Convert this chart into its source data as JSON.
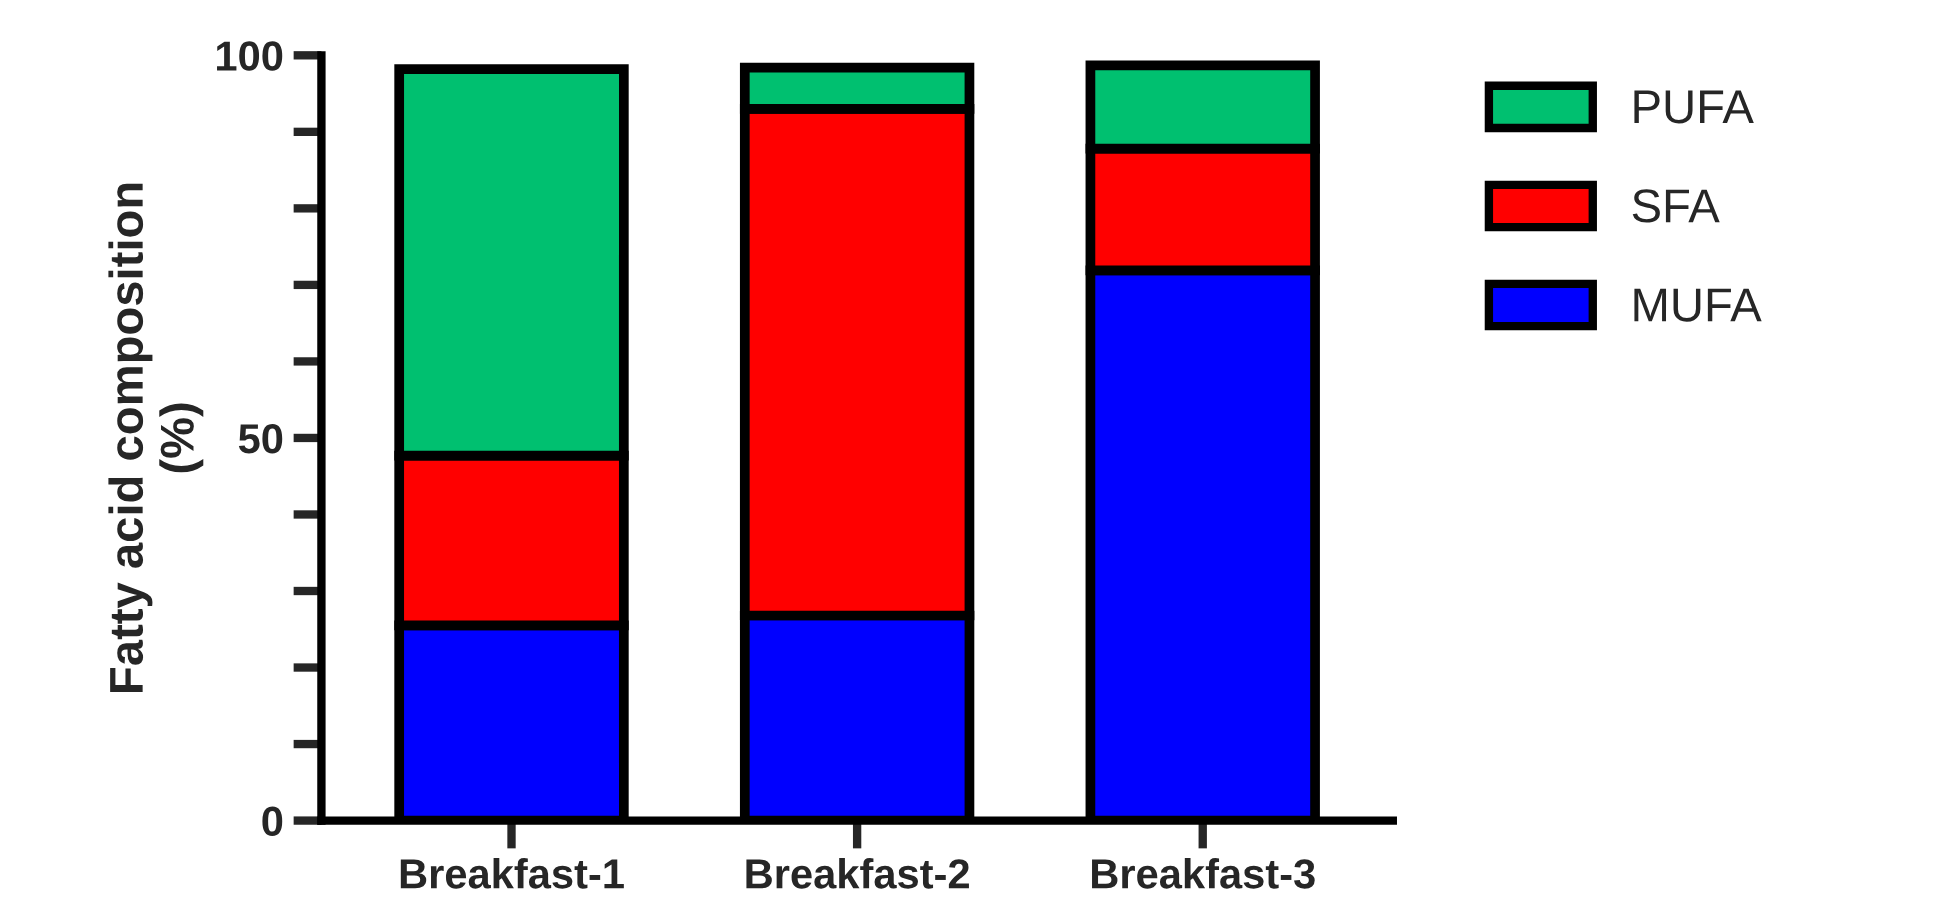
{
  "chart_data": {
    "type": "bar",
    "stacked": true,
    "ylabel": "Fatty acid composition\n(%)",
    "categories": [
      "Breakfast-1",
      "Breakfast-2",
      "Breakfast-3"
    ],
    "series": [
      {
        "name": "MUFA",
        "color": "#0000ff",
        "values": [
          25.5,
          26.8,
          71.9
        ]
      },
      {
        "name": "SFA",
        "color": "#ff0000",
        "values": [
          22.2,
          66.2,
          15.9
        ]
      },
      {
        "name": "PUFA",
        "color": "#00c070",
        "values": [
          50.5,
          5.4,
          10.9
        ]
      }
    ],
    "ylim": [
      0,
      100
    ],
    "yticks": [
      0,
      {
        "value": 10,
        "label": null
      },
      {
        "value": 20,
        "label": null
      },
      {
        "value": 30,
        "label": null
      },
      {
        "value": 40,
        "label": null
      },
      50,
      {
        "value": 60,
        "label": null
      },
      {
        "value": 70,
        "label": null
      },
      {
        "value": 80,
        "label": null
      },
      {
        "value": 90,
        "label": null
      },
      100
    ],
    "grid": false,
    "legend": "right"
  }
}
